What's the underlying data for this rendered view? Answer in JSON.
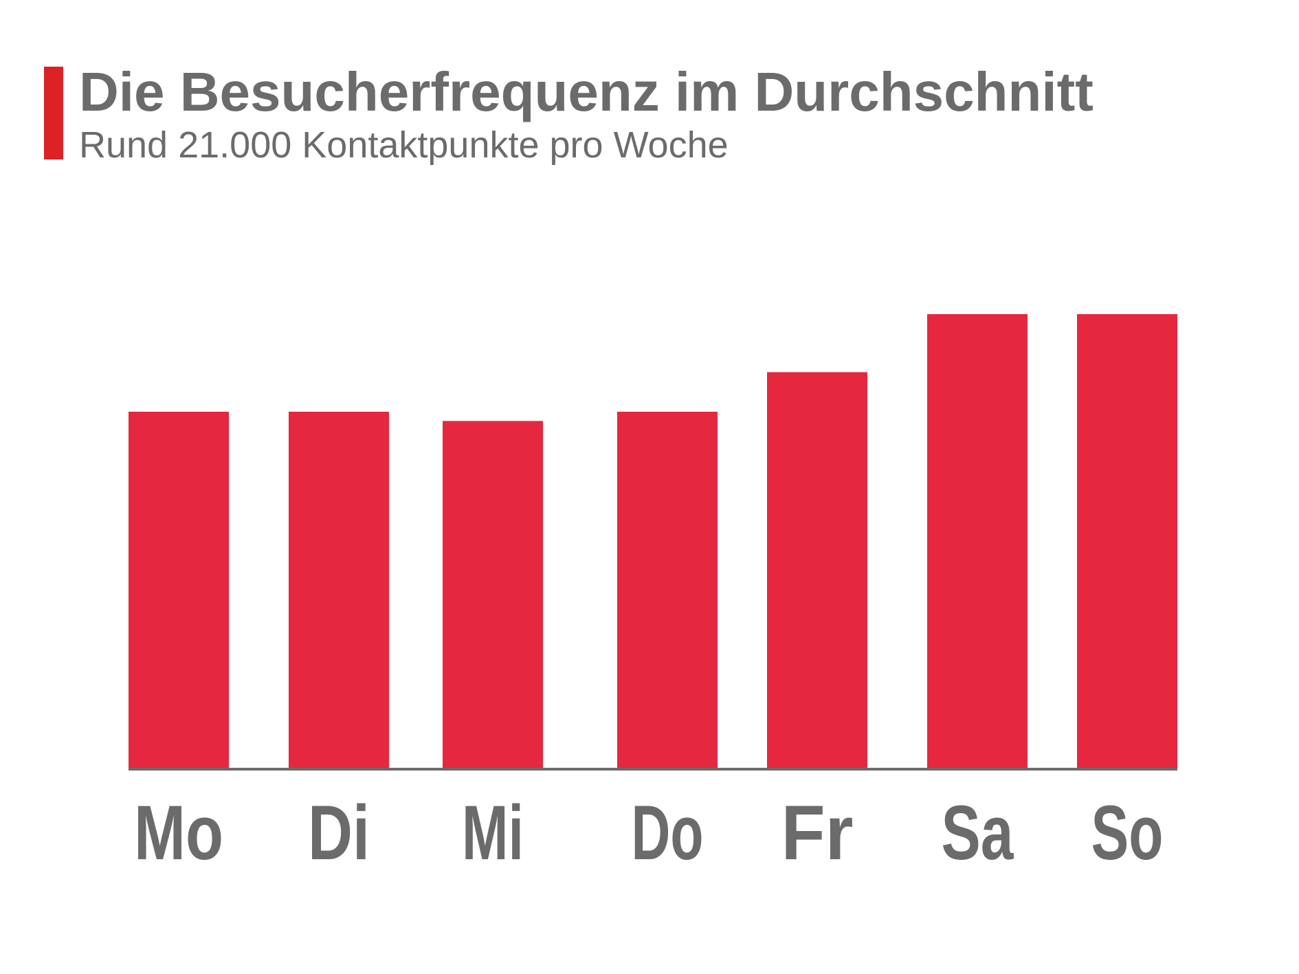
{
  "header": {
    "title": "Die Besucherfrequenz im Durchschnitt",
    "subtitle": "Rund 21.000 Kontaktpunkte pro Woche"
  },
  "colors": {
    "accent": "#dc2224",
    "bar": "#e52740",
    "text": "#6b6b6b",
    "axis": "#6b6b6b"
  },
  "chart_data": {
    "type": "bar",
    "title": "Die Besucherfrequenz im Durchschnitt",
    "subtitle": "Rund 21.000 Kontaktpunkte pro Woche",
    "categories": [
      "Mo",
      "Di",
      "Mi",
      "Do",
      "Fr",
      "Sa",
      "So"
    ],
    "values": [
      2700,
      2700,
      2630,
      2700,
      3000,
      3440,
      3440
    ],
    "ylim": [
      0,
      3440
    ],
    "grid": false,
    "legend": "none",
    "xlabel": "",
    "ylabel": ""
  }
}
